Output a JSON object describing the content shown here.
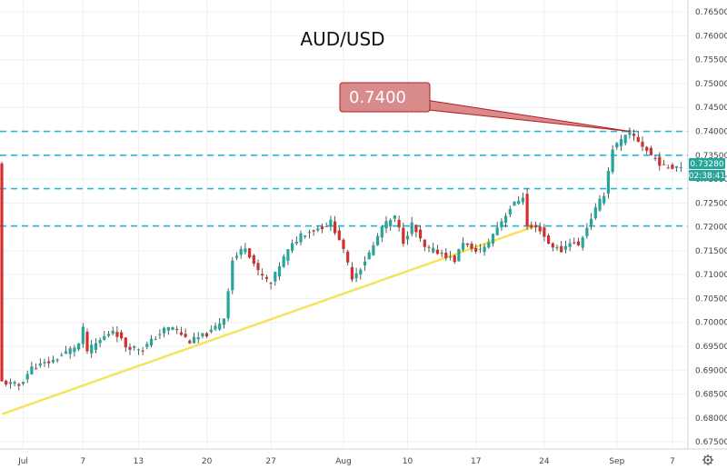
{
  "chart_data": {
    "type": "candlestick",
    "title": "AUD/USD",
    "ylim": [
      0.6735,
      0.7675
    ],
    "grid": true,
    "y_ticks": [
      "0.76500",
      "0.76000",
      "0.75500",
      "0.75000",
      "0.74500",
      "0.74000",
      "0.73500",
      "0.73000",
      "0.72500",
      "0.72000",
      "0.71500",
      "0.71000",
      "0.70500",
      "0.70000",
      "0.69500",
      "0.69000",
      "0.68500",
      "0.68000",
      "0.67500"
    ],
    "x_ticks": [
      "Jul",
      "7",
      "13",
      "20",
      "27",
      "Aug",
      "10",
      "17",
      "24",
      "Sep",
      "7"
    ],
    "x_tick_index": [
      5,
      19,
      32,
      48,
      63,
      80,
      95,
      111,
      127,
      144,
      157
    ],
    "n_bars": 160,
    "last_price": "0.73280",
    "countdown": "02:38:41",
    "annotation": {
      "text": "0.7400",
      "value": 0.74
    },
    "horizontal_levels": [
      0.74,
      0.735,
      0.728,
      0.7202
    ],
    "trendline": {
      "from": {
        "bar": 0,
        "value": 0.6808
      },
      "to": {
        "bar": 125,
        "value": 0.7202
      }
    },
    "price_path": [
      [
        0,
        0.6875
      ],
      [
        4,
        0.6868
      ],
      [
        7,
        0.6905
      ],
      [
        12,
        0.692
      ],
      [
        18,
        0.6955
      ],
      [
        19,
        0.6985
      ],
      [
        20,
        0.694
      ],
      [
        26,
        0.6985
      ],
      [
        27,
        0.6975
      ],
      [
        29,
        0.695
      ],
      [
        33,
        0.6945
      ],
      [
        38,
        0.6985
      ],
      [
        40,
        0.699
      ],
      [
        44,
        0.696
      ],
      [
        49,
        0.698
      ],
      [
        52,
        0.701
      ],
      [
        54,
        0.713
      ],
      [
        57,
        0.716
      ],
      [
        60,
        0.7105
      ],
      [
        63,
        0.708
      ],
      [
        65,
        0.712
      ],
      [
        67,
        0.715
      ],
      [
        70,
        0.7185
      ],
      [
        75,
        0.72
      ],
      [
        77,
        0.721
      ],
      [
        79,
        0.7175
      ],
      [
        82,
        0.7095
      ],
      [
        84,
        0.7115
      ],
      [
        87,
        0.716
      ],
      [
        89,
        0.72
      ],
      [
        92,
        0.722
      ],
      [
        94,
        0.717
      ],
      [
        96,
        0.7205
      ],
      [
        99,
        0.7155
      ],
      [
        103,
        0.7145
      ],
      [
        106,
        0.713
      ],
      [
        108,
        0.717
      ],
      [
        110,
        0.715
      ],
      [
        113,
        0.7155
      ],
      [
        116,
        0.72
      ],
      [
        119,
        0.724
      ],
      [
        122,
        0.7265
      ],
      [
        123,
        0.72
      ],
      [
        126,
        0.7195
      ],
      [
        128,
        0.7165
      ],
      [
        131,
        0.715
      ],
      [
        133,
        0.717
      ],
      [
        135,
        0.716
      ],
      [
        138,
        0.722
      ],
      [
        141,
        0.727
      ],
      [
        143,
        0.7365
      ],
      [
        145,
        0.738
      ],
      [
        147,
        0.7398
      ],
      [
        149,
        0.738
      ],
      [
        152,
        0.735
      ],
      [
        155,
        0.7325
      ],
      [
        158,
        0.7328
      ]
    ],
    "colors": {
      "up": "#26a69a",
      "down": "#d32f2f",
      "wick": "#333333",
      "levels": "#29b6d6",
      "trendline": "#f5e35a",
      "annotation_fill": "#d98a8a",
      "annotation_stroke": "#b71c1c",
      "last_badge": "#26a69a",
      "grid": "#eef0f3"
    }
  }
}
